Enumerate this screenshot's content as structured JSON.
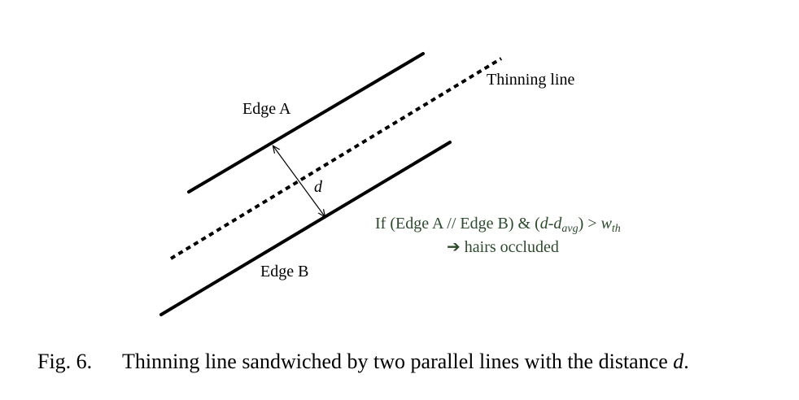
{
  "labels": {
    "edge_a": "Edge A",
    "edge_b": "Edge B",
    "thinning": "Thinning line",
    "distance": "d"
  },
  "condition": {
    "prefix": "If (Edge A // Edge B) & (",
    "d": "d",
    "dash": "-",
    "d2": "d",
    "avg_sub": "avg",
    "close": ") > ",
    "w": "w",
    "th_sub": "th",
    "arrow": "➔",
    "result": " hairs occluded"
  },
  "caption": {
    "number": "Fig. 6.",
    "text": "Thinning line sandwiched by two parallel lines with the distance ",
    "var": "d",
    "end": "."
  },
  "colors": {
    "condition_text": "#2d4a2d",
    "lines": "#000000"
  }
}
